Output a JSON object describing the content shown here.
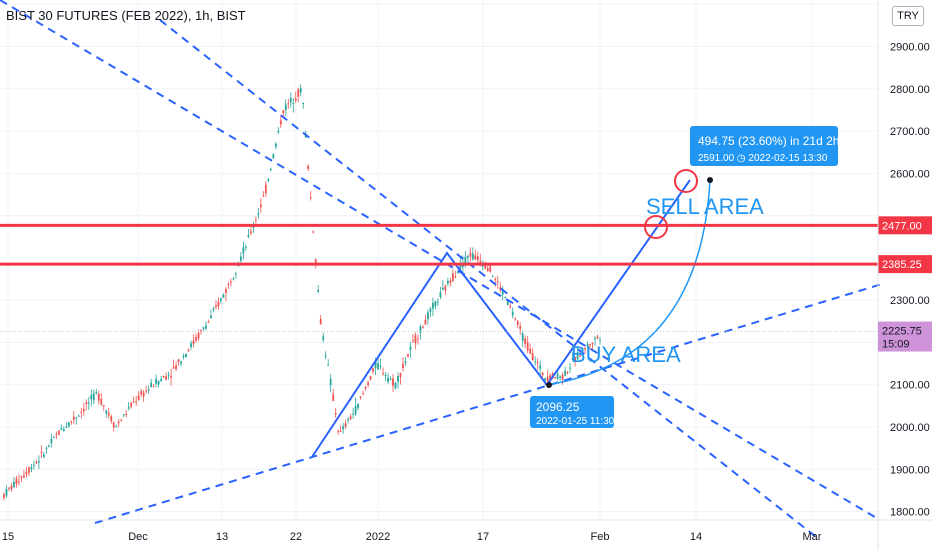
{
  "chart_data": {
    "type": "candlestick",
    "title": "BIST 30 FUTURES (FEB 2022), 1h, BIST",
    "currency": "TRY",
    "y_ticks": [
      1800,
      1900,
      2000,
      2100,
      2200,
      2300,
      2400,
      2500,
      2600,
      2700,
      2800,
      2900,
      3000
    ],
    "y_tick_labels": [
      "1800.00",
      "1900.00",
      "2000.00",
      "2100.00",
      "",
      "2300.00",
      "",
      "",
      "2600.00",
      "2700.00",
      "2800.00",
      "2900.00",
      ""
    ],
    "ylim": [
      1780,
      3010
    ],
    "x_ticks": [
      "15",
      "Dec",
      "13",
      "22",
      "2022",
      "17",
      "Feb",
      "14",
      "Mar"
    ],
    "price_path": [
      [
        1840,
        1855
      ],
      [
        1885,
        1900
      ],
      [
        1930,
        1960
      ],
      [
        1990,
        2010
      ],
      [
        2030,
        2060
      ],
      [
        2080,
        2040
      ],
      [
        2000,
        2060
      ],
      [
        2060,
        2090
      ],
      [
        2100,
        2120
      ],
      [
        2130,
        2180
      ],
      [
        2190,
        2230
      ],
      [
        2250,
        2300
      ],
      [
        2330,
        2400
      ],
      [
        2430,
        2500
      ],
      [
        2550,
        2650
      ],
      [
        2750,
        2880
      ],
      [
        2800,
        2400
      ],
      [
        2250,
        2000
      ],
      [
        1980,
        2000
      ],
      [
        2050,
        2100
      ],
      [
        2150,
        2120
      ],
      [
        2100,
        2150
      ],
      [
        2200,
        2230
      ],
      [
        2280,
        2330
      ],
      [
        2350,
        2380
      ],
      [
        2410,
        2400
      ],
      [
        2380,
        2350
      ],
      [
        2300,
        2250
      ],
      [
        2200,
        2150
      ],
      [
        2120,
        2100
      ],
      [
        2120,
        2150
      ],
      [
        2180,
        2200
      ],
      [
        2215,
        2226
      ]
    ],
    "horizontal_levels": [
      {
        "value": 2477.0,
        "label": "2477.00",
        "color": "#f23645"
      },
      {
        "value": 2385.25,
        "label": "2385.25",
        "color": "#f23645"
      }
    ],
    "last_price": {
      "value": 2225.75,
      "label": "2225.75",
      "countdown": "15:09",
      "color": "#ce93d8"
    },
    "annotations": [
      {
        "text": "SELL AREA",
        "color": "#2196f3"
      },
      {
        "text": "BUY AREA",
        "color": "#2196f3"
      }
    ],
    "measure_label": {
      "line1": "494.75 (23.60%) in 21d 2h",
      "line2": "2591.00 ◷ 2022-02-15  13:30"
    },
    "low_label": {
      "line1": "2096.25",
      "line2": "2022-01-25 11:30"
    },
    "colors": {
      "up": "#26a69a",
      "down": "#ef5350",
      "drawing": "#2962ff",
      "accent": "#2196f3"
    }
  }
}
